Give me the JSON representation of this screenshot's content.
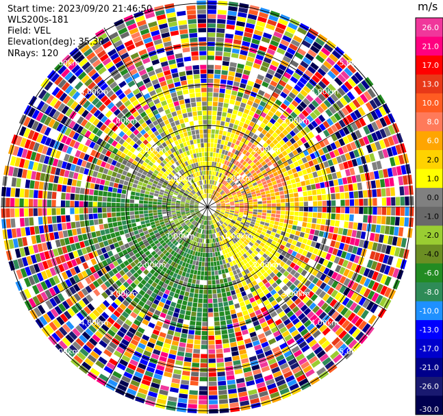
{
  "header": {
    "start_time": "Start time: 2023/09/20 21:46:50",
    "instrument": "WLS200s-181",
    "field": "Field: VEL",
    "elevation": "Elevation(deg): 35.30",
    "nrays": "NRays: 120"
  },
  "chart_data": {
    "type": "heatmap",
    "projection": "polar-ppi",
    "field": "VEL",
    "nrays": 120,
    "range_rings_km": [
      1.0,
      2.0,
      3.0,
      4.0,
      5.0
    ],
    "range_ring_labels": [
      "1.00km",
      "2.00km",
      "3.00km",
      "4.00km",
      "5.00km"
    ],
    "colorbar": {
      "unit": "m/s",
      "ticks": [
        "26.0",
        "21.0",
        "17.0",
        "13.0",
        "10.0",
        "8.0",
        "6.0",
        "2.0",
        "1.0",
        "0.0",
        "-1.0",
        "-2.0",
        "-4.0",
        "-6.0",
        "-8.0",
        "-10.0",
        "-13.0",
        "-17.0",
        "-21.0",
        "-26.0",
        "-30.0"
      ],
      "bins": [
        {
          "color": "#f0379b"
        },
        {
          "color": "#ff007f"
        },
        {
          "color": "#ff0000"
        },
        {
          "color": "#e83818"
        },
        {
          "color": "#ff5c22"
        },
        {
          "color": "#ff7a5a"
        },
        {
          "color": "#ffa500"
        },
        {
          "color": "#ffd200"
        },
        {
          "color": "#ffff00"
        },
        {
          "color": "#808080"
        },
        {
          "color": "#696969"
        },
        {
          "color": "#9acd32"
        },
        {
          "color": "#6b8e23"
        },
        {
          "color": "#228b22"
        },
        {
          "color": "#2e8b57"
        },
        {
          "color": "#1e90ff"
        },
        {
          "color": "#0000ff"
        },
        {
          "color": "#0000cd"
        },
        {
          "color": "#00008b"
        },
        {
          "color": "#191970"
        },
        {
          "color": "#000050"
        }
      ]
    }
  }
}
